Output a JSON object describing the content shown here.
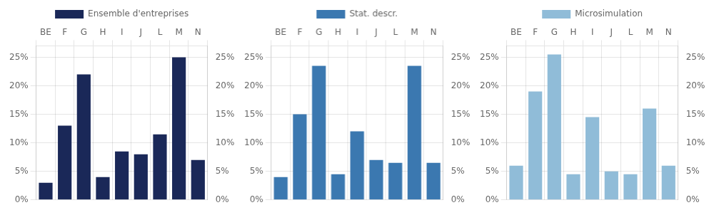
{
  "chart_data": [
    {
      "type": "bar",
      "categories": [
        "BE",
        "F",
        "G",
        "H",
        "I",
        "J",
        "L",
        "M",
        "N"
      ],
      "series": [
        {
          "name": "Ensemble d'entreprises",
          "color": "#1a2858",
          "values": [
            3.0,
            13.0,
            22.0,
            4.0,
            8.5,
            8.0,
            11.5,
            25.0,
            7.0
          ]
        }
      ],
      "ylim": [
        0,
        27
      ],
      "yticks": [
        {
          "value": 0,
          "label": "0%"
        },
        {
          "value": 5,
          "label": "5%"
        },
        {
          "value": 10,
          "label": "10%"
        },
        {
          "value": 15,
          "label": "15%"
        },
        {
          "value": 20,
          "label": "20%"
        },
        {
          "value": 25,
          "label": "25%"
        }
      ],
      "y2lim": [
        0,
        27
      ],
      "y2ticks": [
        {
          "value": 0,
          "label": "0%"
        },
        {
          "value": 5,
          "label": "5%"
        },
        {
          "value": 10,
          "label": "10%"
        },
        {
          "value": 15,
          "label": "15%"
        },
        {
          "value": 20,
          "label": "20%"
        },
        {
          "value": 25,
          "label": "25%"
        }
      ],
      "grid": true,
      "legend": "top"
    },
    {
      "type": "bar",
      "categories": [
        "BE",
        "F",
        "G",
        "H",
        "I",
        "J",
        "L",
        "M",
        "N"
      ],
      "series": [
        {
          "name": "Stat. descr.",
          "color": "#3b78b0",
          "values": [
            4.0,
            15.0,
            23.5,
            4.5,
            12.0,
            7.0,
            6.5,
            23.5,
            6.5
          ]
        }
      ],
      "ylim": [
        0,
        27
      ],
      "yticks": [
        {
          "value": 0,
          "label": "0%"
        },
        {
          "value": 5,
          "label": "5%"
        },
        {
          "value": 10,
          "label": "10%"
        },
        {
          "value": 15,
          "label": "15%"
        },
        {
          "value": 20,
          "label": "20%"
        },
        {
          "value": 25,
          "label": "25%"
        }
      ],
      "y2lim": [
        0,
        27
      ],
      "y2ticks": [
        {
          "value": 0,
          "label": "0%"
        },
        {
          "value": 5,
          "label": "5%"
        },
        {
          "value": 10,
          "label": "10%"
        },
        {
          "value": 15,
          "label": "15%"
        },
        {
          "value": 20,
          "label": "20%"
        },
        {
          "value": 25,
          "label": "25%"
        }
      ],
      "grid": true,
      "legend": "top"
    },
    {
      "type": "bar",
      "categories": [
        "BE",
        "F",
        "G",
        "H",
        "I",
        "J",
        "L",
        "M",
        "N"
      ],
      "series": [
        {
          "name": "Microsimulation",
          "color": "#90bcd8",
          "values": [
            6.0,
            19.0,
            25.5,
            4.5,
            14.5,
            5.0,
            4.5,
            16.0,
            6.0
          ]
        }
      ],
      "ylim": [
        0,
        27
      ],
      "yticks": [
        {
          "value": 0,
          "label": "0%"
        },
        {
          "value": 5,
          "label": "5%"
        },
        {
          "value": 10,
          "label": "10%"
        },
        {
          "value": 15,
          "label": "15%"
        },
        {
          "value": 20,
          "label": "20%"
        },
        {
          "value": 25,
          "label": "25%"
        }
      ],
      "y2lim": [
        0,
        27
      ],
      "y2ticks": [
        {
          "value": 0,
          "label": "0%"
        },
        {
          "value": 5,
          "label": "5%"
        },
        {
          "value": 10,
          "label": "10%"
        },
        {
          "value": 15,
          "label": "15%"
        },
        {
          "value": 20,
          "label": "20%"
        },
        {
          "value": 25,
          "label": "25%"
        }
      ],
      "grid": true,
      "legend": "top"
    }
  ]
}
